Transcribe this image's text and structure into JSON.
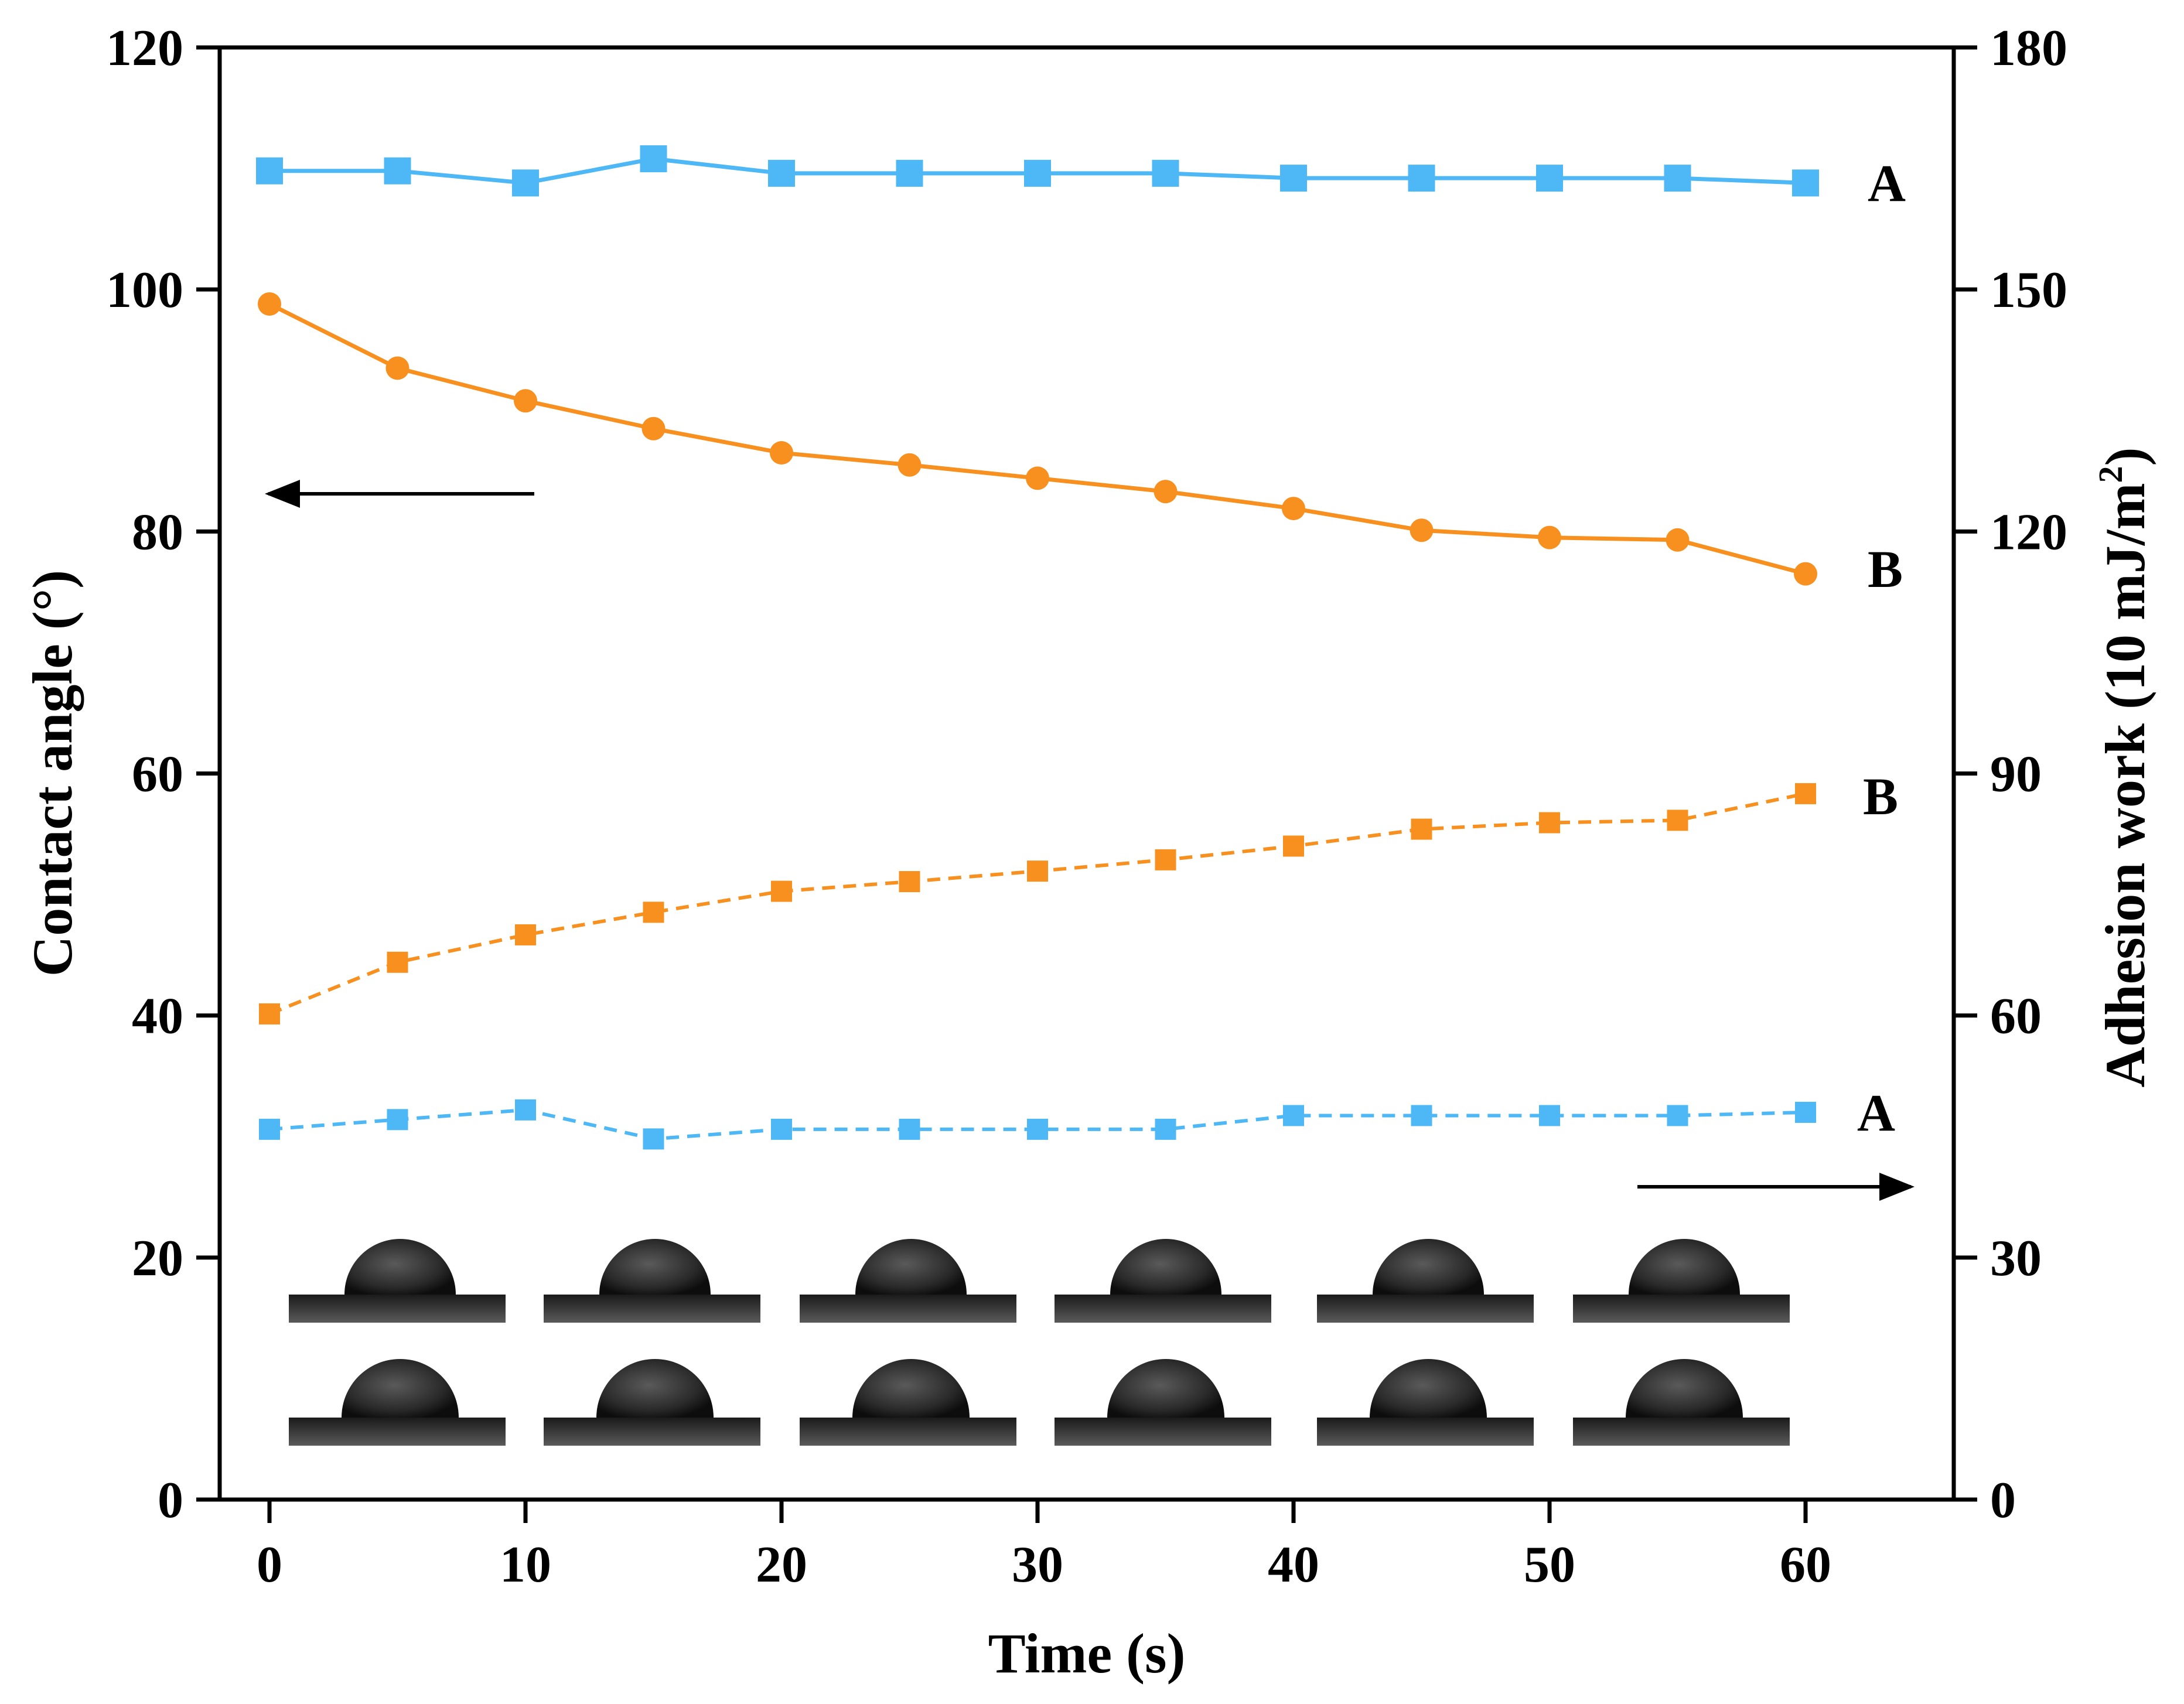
{
  "chart_data": {
    "type": "line",
    "title": "",
    "xlabel": "Time (s)",
    "ylabel_left": "Contact angle (°)",
    "ylabel_right_main": "Adhesion work (10 mJ/m",
    "ylabel_right_sup": "2",
    "ylabel_right_close": ")",
    "xlim": [
      -2,
      65
    ],
    "ylim_left": [
      0,
      120
    ],
    "ylim_right": [
      0,
      180
    ],
    "x_ticks": [
      0,
      10,
      20,
      30,
      40,
      50,
      60
    ],
    "x_tick_labels": [
      "0",
      "10",
      "20",
      "30",
      "40",
      "50",
      "60"
    ],
    "y_left_ticks": [
      0,
      20,
      40,
      60,
      80,
      100,
      120
    ],
    "y_left_tick_labels": [
      "0",
      "20",
      "40",
      "60",
      "80",
      "100",
      "120"
    ],
    "y_right_ticks": [
      0,
      30,
      60,
      90,
      120,
      150,
      180
    ],
    "y_right_tick_labels": [
      "0",
      "30",
      "60",
      "90",
      "120",
      "150",
      "180"
    ],
    "x": [
      0,
      5,
      10,
      15,
      20,
      25,
      30,
      35,
      40,
      45,
      50,
      55,
      60
    ],
    "series": [
      {
        "name": "A",
        "axis": "left",
        "color": "#4db8f5",
        "marker": "square",
        "line": "solid",
        "values": [
          109.8,
          109.8,
          108.8,
          110.8,
          109.6,
          109.6,
          109.6,
          109.6,
          109.2,
          109.2,
          109.2,
          109.2,
          108.8
        ]
      },
      {
        "name": "B",
        "axis": "left",
        "color": "#f7901e",
        "marker": "circle",
        "line": "solid",
        "values": [
          98.8,
          93.5,
          90.8,
          88.5,
          86.5,
          85.5,
          84.4,
          83.3,
          81.9,
          80.1,
          79.5,
          79.3,
          76.5
        ]
      },
      {
        "name": "B",
        "axis": "right",
        "color": "#f7901e",
        "marker": "square",
        "line": "dashed",
        "values": [
          60.2,
          66.6,
          70.0,
          72.8,
          75.4,
          76.6,
          77.9,
          79.3,
          81.0,
          83.1,
          83.9,
          84.2,
          87.5
        ]
      },
      {
        "name": "A",
        "axis": "right",
        "color": "#4db8f5",
        "marker": "square",
        "line": "dashed",
        "values": [
          45.9,
          47.1,
          48.3,
          44.7,
          45.9,
          45.9,
          45.9,
          45.9,
          47.6,
          47.6,
          47.6,
          47.6,
          48.0
        ]
      }
    ],
    "annotations": {
      "left_arrow": "points to left axis",
      "right_arrow": "points to right axis",
      "droplet_images": "two rows of six droplet photographs"
    }
  }
}
